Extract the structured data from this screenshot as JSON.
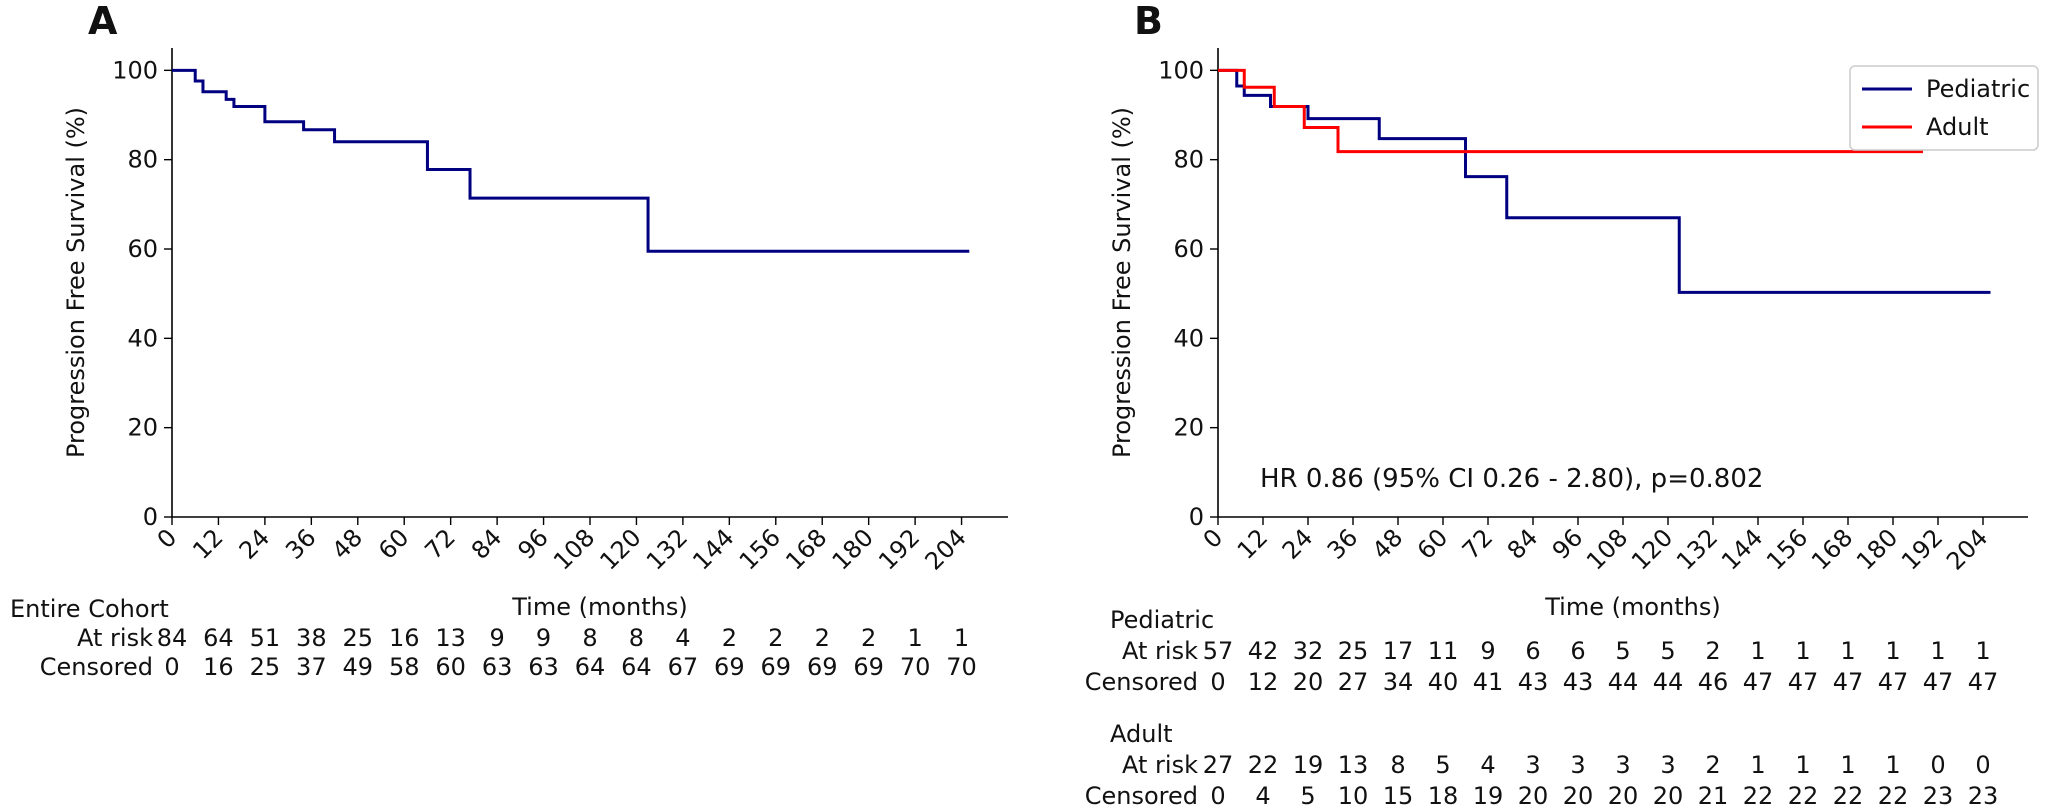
{
  "colors": {
    "pediatric": "#000080",
    "adult": "#ff0000",
    "axis": "#000000",
    "entire": "#000080"
  },
  "chart_data": [
    {
      "type": "line",
      "panel_label": "A",
      "title": "",
      "xlabel": "Time (months)",
      "ylabel": "Progression Free Survival (%)",
      "xlim": [
        0,
        216
      ],
      "ylim": [
        0,
        105
      ],
      "xticks": [
        0,
        12,
        24,
        36,
        48,
        60,
        72,
        84,
        96,
        108,
        120,
        132,
        144,
        156,
        168,
        180,
        192,
        204
      ],
      "yticks": [
        0,
        20,
        40,
        60,
        80,
        100
      ],
      "grid": false,
      "step": "post",
      "series": [
        {
          "name": "",
          "color": "#000080",
          "x": [
            0,
            6,
            8,
            14,
            16,
            24,
            34,
            42,
            66,
            77,
            123,
            206
          ],
          "y": [
            100,
            97.6,
            95.2,
            93.5,
            91.9,
            88.5,
            86.7,
            84.0,
            77.8,
            71.4,
            59.5,
            59.5
          ]
        }
      ],
      "risk_table": {
        "groups": [
          {
            "title": "Entire Cohort",
            "rows": [
              {
                "label": "At risk",
                "values": [
                  "84",
                  "64",
                  "51",
                  "38",
                  "25",
                  "16",
                  "13",
                  "9",
                  "9",
                  "8",
                  "8",
                  "4",
                  "2",
                  "2",
                  "2",
                  "2",
                  "1",
                  "1"
                ]
              },
              {
                "label": "Censored",
                "values": [
                  "0",
                  "16",
                  "25",
                  "37",
                  "49",
                  "58",
                  "60",
                  "63",
                  "63",
                  "64",
                  "64",
                  "67",
                  "69",
                  "69",
                  "69",
                  "69",
                  "70",
                  "70"
                ]
              }
            ]
          }
        ]
      }
    },
    {
      "type": "line",
      "panel_label": "B",
      "title": "",
      "xlabel": "Time (months)",
      "ylabel": "Progression  Free Survival (%)",
      "xlim": [
        0,
        216
      ],
      "ylim": [
        0,
        105
      ],
      "xticks": [
        0,
        12,
        24,
        36,
        48,
        60,
        72,
        84,
        96,
        108,
        120,
        132,
        144,
        156,
        168,
        180,
        192,
        204
      ],
      "yticks": [
        0,
        20,
        40,
        60,
        80,
        100
      ],
      "grid": false,
      "legend": "top-right",
      "annotation": "HR 0.86 (95% CI 0.26 - 2.80), p=0.802",
      "step": "post",
      "series": [
        {
          "name": "Pediatric",
          "color": "#000080",
          "x": [
            0,
            5,
            7,
            14,
            24,
            43,
            66,
            77,
            123,
            206
          ],
          "y": [
            100,
            96.5,
            94.4,
            91.9,
            89.2,
            84.7,
            76.2,
            67.0,
            50.3,
            50.3
          ]
        },
        {
          "name": "Adult",
          "color": "#ff0000",
          "x": [
            0,
            7,
            15,
            23,
            32,
            188
          ],
          "y": [
            100,
            96.2,
            91.9,
            87.2,
            81.8,
            81.8
          ]
        }
      ],
      "risk_table": {
        "groups": [
          {
            "title": "Pediatric",
            "rows": [
              {
                "label": "At risk",
                "values": [
                  "57",
                  "42",
                  "32",
                  "25",
                  "17",
                  "11",
                  "9",
                  "6",
                  "6",
                  "5",
                  "5",
                  "2",
                  "1",
                  "1",
                  "1",
                  "1",
                  "1",
                  "1"
                ]
              },
              {
                "label": "Censored",
                "values": [
                  "0",
                  "12",
                  "20",
                  "27",
                  "34",
                  "40",
                  "41",
                  "43",
                  "43",
                  "44",
                  "44",
                  "46",
                  "47",
                  "47",
                  "47",
                  "47",
                  "47",
                  "47"
                ]
              }
            ]
          },
          {
            "title": "Adult",
            "rows": [
              {
                "label": "At risk",
                "values": [
                  "27",
                  "22",
                  "19",
                  "13",
                  "8",
                  "5",
                  "4",
                  "3",
                  "3",
                  "3",
                  "3",
                  "2",
                  "1",
                  "1",
                  "1",
                  "1",
                  "0",
                  "0"
                ]
              },
              {
                "label": "Censored",
                "values": [
                  "0",
                  "4",
                  "5",
                  "10",
                  "15",
                  "18",
                  "19",
                  "20",
                  "20",
                  "20",
                  "20",
                  "21",
                  "22",
                  "22",
                  "22",
                  "22",
                  "23",
                  "23"
                ]
              }
            ]
          }
        ]
      }
    }
  ]
}
